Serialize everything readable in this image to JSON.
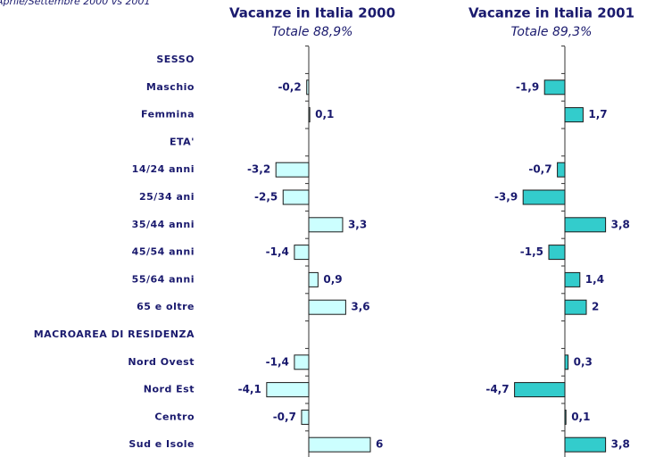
{
  "subtitle": "Aprile/Settembre 2000 vs 2001",
  "chart_data": [
    {
      "type": "barh",
      "title": "Vacanze in Italia 2000",
      "subtitle": "Totale 88,9%",
      "categories": [
        "SESSO",
        "Maschio",
        "Femmina",
        "ETA'",
        "14/24 anni",
        "25/34 ani",
        "35/44 anni",
        "45/54 anni",
        "55/64 anni",
        "65 e oltre",
        "MACROAREA DI RESIDENZA",
        "Nord Ovest",
        "Nord Est",
        "Centro",
        "Sud e Isole"
      ],
      "values": [
        null,
        -0.2,
        0.1,
        null,
        -3.2,
        -2.5,
        3.3,
        -1.4,
        0.9,
        3.6,
        null,
        -1.4,
        -4.1,
        -0.7,
        6
      ],
      "value_labels": [
        null,
        "-0,2",
        "0,1",
        null,
        "-3,2",
        "-2,5",
        "3,3",
        "-1,4",
        "0,9",
        "3,6",
        null,
        "-1,4",
        "-4,1",
        "-0,7",
        "6"
      ],
      "color": "#ccffff",
      "xlim": [
        -5,
        7
      ]
    },
    {
      "type": "barh",
      "title": "Vacanze in Italia 2001",
      "subtitle": "Totale 89,3%",
      "values": [
        null,
        -1.9,
        1.7,
        null,
        -0.7,
        -3.9,
        3.8,
        -1.5,
        1.4,
        2,
        null,
        0.3,
        -4.7,
        0.1,
        3.8
      ],
      "value_labels": [
        null,
        "-1,9",
        "1,7",
        null,
        "-0,7",
        "-3,9",
        "3,8",
        "-1,5",
        "1,4",
        "2",
        null,
        "0,3",
        "-4,7",
        "0,1",
        "3,8"
      ],
      "color": "#33cccc",
      "xlim": [
        -5,
        7
      ]
    }
  ]
}
